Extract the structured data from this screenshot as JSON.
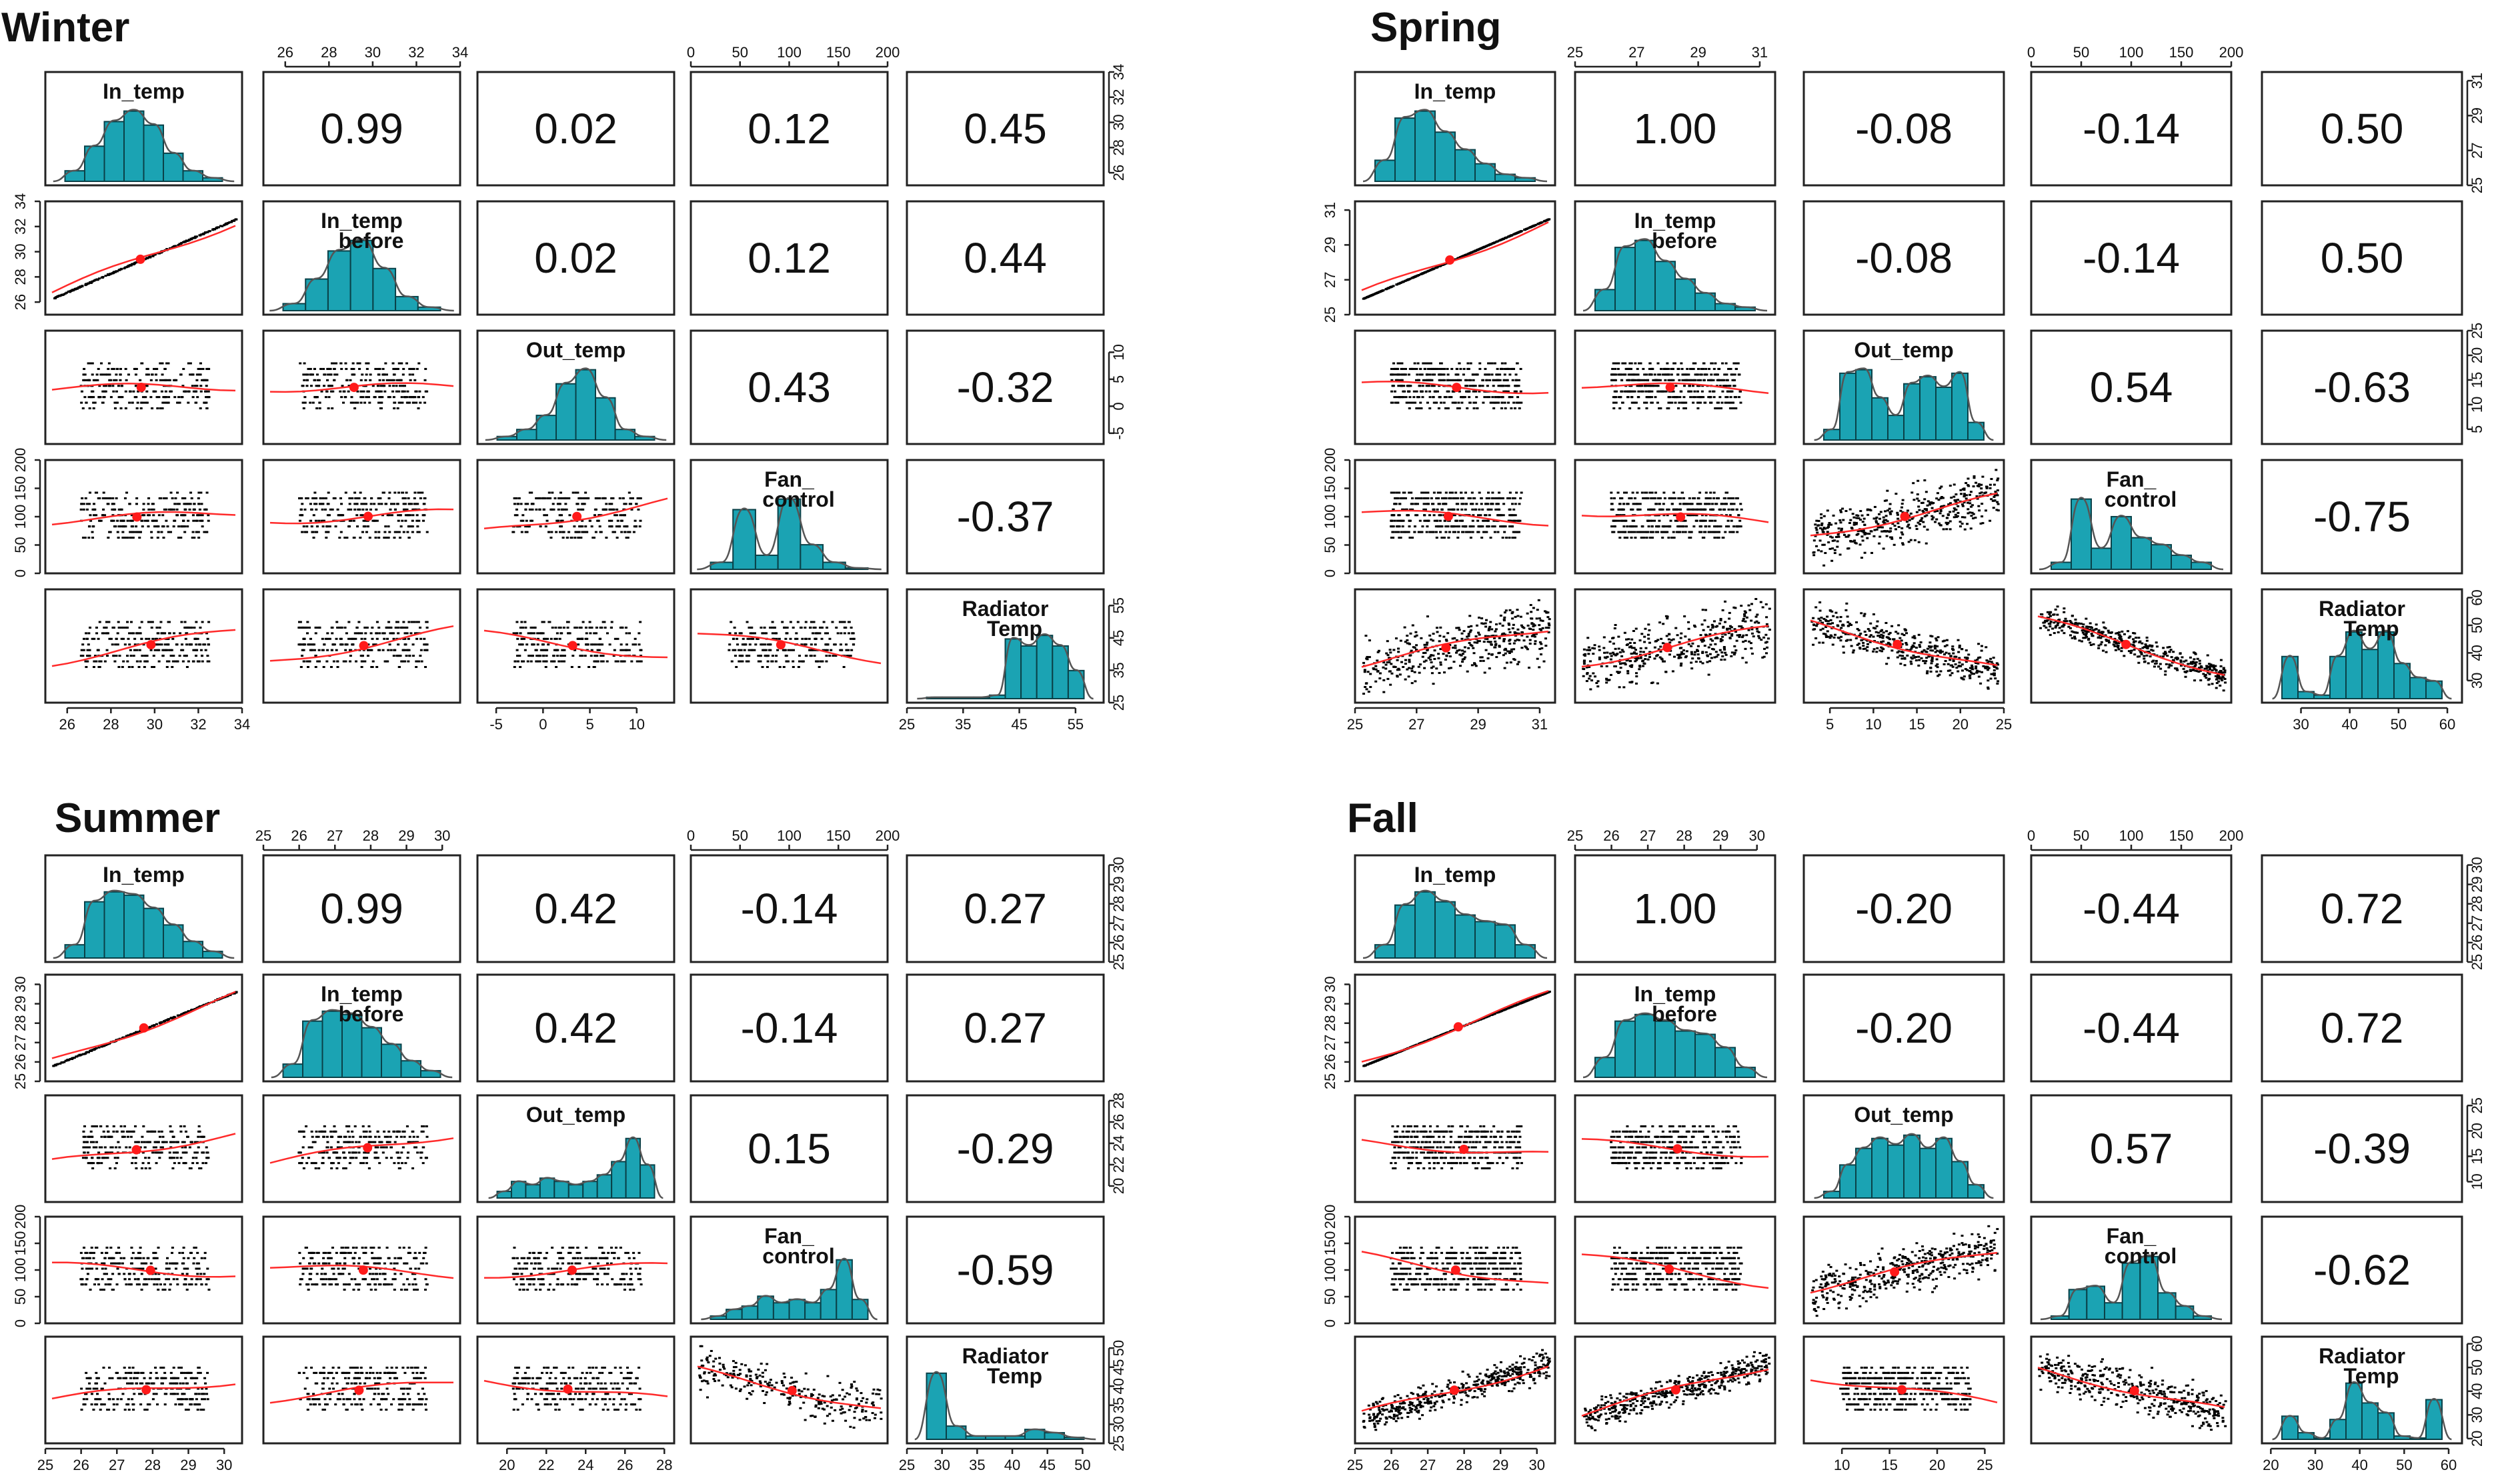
{
  "chart_data": [
    {
      "type": "scatter-matrix",
      "title": "Winter",
      "variables": [
        "In_temp",
        "In_temp before",
        "Out_temp",
        "Fan_ control",
        "Radiator Temp"
      ],
      "diagonal_labels": [
        [
          "In_temp"
        ],
        [
          "In_temp",
          "before"
        ],
        [
          "Out_temp"
        ],
        [
          "Fan_",
          "control"
        ],
        [
          "Radiator",
          "Temp"
        ]
      ],
      "ranges": [
        [
          25,
          34
        ],
        [
          25,
          34
        ],
        [
          -7,
          14
        ],
        [
          0,
          200
        ],
        [
          25,
          60
        ]
      ],
      "ticks": [
        [
          26,
          28,
          30,
          32,
          34
        ],
        [
          26,
          28,
          30,
          32,
          34
        ],
        [
          -5,
          0,
          5,
          10
        ],
        [
          0,
          50,
          100,
          150,
          200
        ],
        [
          25,
          35,
          45,
          55
        ]
      ],
      "correlations": [
        [
          "",
          "0.99",
          "0.02",
          "0.12",
          "0.45"
        ],
        [
          "",
          "",
          "0.02",
          "0.12",
          "0.44"
        ],
        [
          "",
          "",
          "",
          "0.43",
          "-0.32"
        ],
        [
          "",
          "",
          "",
          "",
          "-0.37"
        ]
      ],
      "histograms": [
        [
          0.15,
          0.5,
          0.85,
          1.0,
          0.8,
          0.4,
          0.15,
          0.05
        ],
        [
          0.1,
          0.45,
          0.85,
          1.0,
          0.6,
          0.2,
          0.05
        ],
        [
          0.05,
          0.15,
          0.35,
          0.8,
          1.0,
          0.6,
          0.15,
          0.05
        ],
        [
          0.1,
          0.85,
          0.2,
          1.0,
          0.35,
          0.1,
          0.02
        ],
        [
          0.02,
          0.02,
          0.02,
          0.02,
          0.05,
          0.85,
          0.75,
          0.9,
          0.75,
          0.4
        ]
      ]
    },
    {
      "type": "scatter-matrix",
      "title": "Spring",
      "variables": [
        "In_temp",
        "In_temp before",
        "Out_temp",
        "Fan_ control",
        "Radiator Temp"
      ],
      "diagonal_labels": [
        [
          "In_temp"
        ],
        [
          "In_temp",
          "before"
        ],
        [
          "Out_temp"
        ],
        [
          "Fan_",
          "control"
        ],
        [
          "Radiator",
          "Temp"
        ]
      ],
      "ranges": [
        [
          25,
          31.5
        ],
        [
          25,
          31.5
        ],
        [
          2,
          25
        ],
        [
          0,
          200
        ],
        [
          22,
          63
        ]
      ],
      "ticks": [
        [
          25,
          27,
          29,
          31
        ],
        [
          25,
          27,
          29,
          31
        ],
        [
          5,
          10,
          15,
          20,
          25
        ],
        [
          0,
          50,
          100,
          150,
          200
        ],
        [
          30,
          40,
          50,
          60
        ]
      ],
      "correlations": [
        [
          "",
          "1.00",
          "-0.08",
          "-0.14",
          "0.50"
        ],
        [
          "",
          "",
          "-0.08",
          "-0.14",
          "0.50"
        ],
        [
          "",
          "",
          "",
          "0.54",
          "-0.63"
        ],
        [
          "",
          "",
          "",
          "",
          "-0.75"
        ]
      ],
      "histograms": [
        [
          0.3,
          0.9,
          1.0,
          0.7,
          0.45,
          0.25,
          0.1,
          0.05
        ],
        [
          0.3,
          0.9,
          1.0,
          0.7,
          0.45,
          0.25,
          0.1,
          0.05
        ],
        [
          0.15,
          0.95,
          1.0,
          0.6,
          0.35,
          0.8,
          0.9,
          0.75,
          0.95,
          0.25
        ],
        [
          0.1,
          1.0,
          0.3,
          0.75,
          0.45,
          0.35,
          0.2,
          0.1
        ],
        [
          0.6,
          0.1,
          0.05,
          0.6,
          0.95,
          0.7,
          0.95,
          0.5,
          0.3,
          0.25
        ]
      ]
    },
    {
      "type": "scatter-matrix",
      "title": "Summer",
      "variables": [
        "In_temp",
        "In_temp before",
        "Out_temp",
        "Fan_ control",
        "Radiator Temp"
      ],
      "diagonal_labels": [
        [
          "In_temp"
        ],
        [
          "In_temp",
          "before"
        ],
        [
          "Out_temp"
        ],
        [
          "Fan_",
          "control"
        ],
        [
          "Radiator",
          "Temp"
        ]
      ],
      "ranges": [
        [
          25,
          30.5
        ],
        [
          25,
          30.5
        ],
        [
          18.5,
          28.5
        ],
        [
          0,
          200
        ],
        [
          25,
          53
        ]
      ],
      "ticks": [
        [
          25,
          26,
          27,
          28,
          29,
          30
        ],
        [
          25,
          26,
          27,
          28,
          29,
          30
        ],
        [
          20,
          22,
          24,
          26,
          28
        ],
        [
          0,
          50,
          100,
          150,
          200
        ],
        [
          25,
          30,
          35,
          40,
          45,
          50
        ]
      ],
      "correlations": [
        [
          "",
          "0.99",
          "0.42",
          "-0.14",
          "0.27"
        ],
        [
          "",
          "",
          "0.42",
          "-0.14",
          "0.27"
        ],
        [
          "",
          "",
          "",
          "0.15",
          "-0.29"
        ],
        [
          "",
          "",
          "",
          "",
          "-0.59"
        ]
      ],
      "histograms": [
        [
          0.2,
          0.85,
          1.0,
          0.95,
          0.75,
          0.5,
          0.25,
          0.1
        ],
        [
          0.2,
          0.85,
          1.0,
          0.95,
          0.75,
          0.5,
          0.25,
          0.1
        ],
        [
          0.1,
          0.25,
          0.2,
          0.3,
          0.25,
          0.2,
          0.25,
          0.35,
          0.55,
          0.9,
          0.5
        ],
        [
          0.05,
          0.15,
          0.2,
          0.35,
          0.25,
          0.3,
          0.25,
          0.45,
          0.9,
          0.3
        ],
        [
          1.0,
          0.2,
          0.05,
          0.05,
          0.05,
          0.15,
          0.1,
          0.03
        ]
      ]
    },
    {
      "type": "scatter-matrix",
      "title": "Fall",
      "variables": [
        "In_temp",
        "In_temp before",
        "Out_temp",
        "Fan_ control",
        "Radiator Temp"
      ],
      "diagonal_labels": [
        [
          "In_temp"
        ],
        [
          "In_temp",
          "before"
        ],
        [
          "Out_temp"
        ],
        [
          "Fan_",
          "control"
        ],
        [
          "Radiator",
          "Temp"
        ]
      ],
      "ranges": [
        [
          25,
          30.5
        ],
        [
          25,
          30.5
        ],
        [
          6,
          27
        ],
        [
          0,
          200
        ],
        [
          18,
          63
        ]
      ],
      "ticks": [
        [
          25,
          26,
          27,
          28,
          29,
          30
        ],
        [
          25,
          26,
          27,
          28,
          29,
          30
        ],
        [
          10,
          15,
          20,
          25
        ],
        [
          0,
          50,
          100,
          150,
          200
        ],
        [
          20,
          30,
          40,
          50,
          60
        ]
      ],
      "correlations": [
        [
          "",
          "1.00",
          "-0.20",
          "-0.44",
          "0.72"
        ],
        [
          "",
          "",
          "-0.20",
          "-0.44",
          "0.72"
        ],
        [
          "",
          "",
          "",
          "0.57",
          "-0.39"
        ],
        [
          "",
          "",
          "",
          "",
          "-0.62"
        ]
      ],
      "histograms": [
        [
          0.2,
          0.8,
          1.0,
          0.85,
          0.65,
          0.55,
          0.5,
          0.2
        ],
        [
          0.3,
          0.85,
          0.95,
          0.85,
          0.7,
          0.65,
          0.45,
          0.15
        ],
        [
          0.1,
          0.5,
          0.75,
          0.9,
          0.8,
          0.95,
          0.75,
          0.9,
          0.55,
          0.2
        ],
        [
          0.05,
          0.45,
          0.5,
          0.25,
          0.85,
          0.95,
          0.4,
          0.2,
          0.05
        ],
        [
          0.35,
          0.1,
          0.02,
          0.3,
          0.85,
          0.55,
          0.4,
          0.05,
          0.02,
          0.6
        ]
      ]
    }
  ]
}
